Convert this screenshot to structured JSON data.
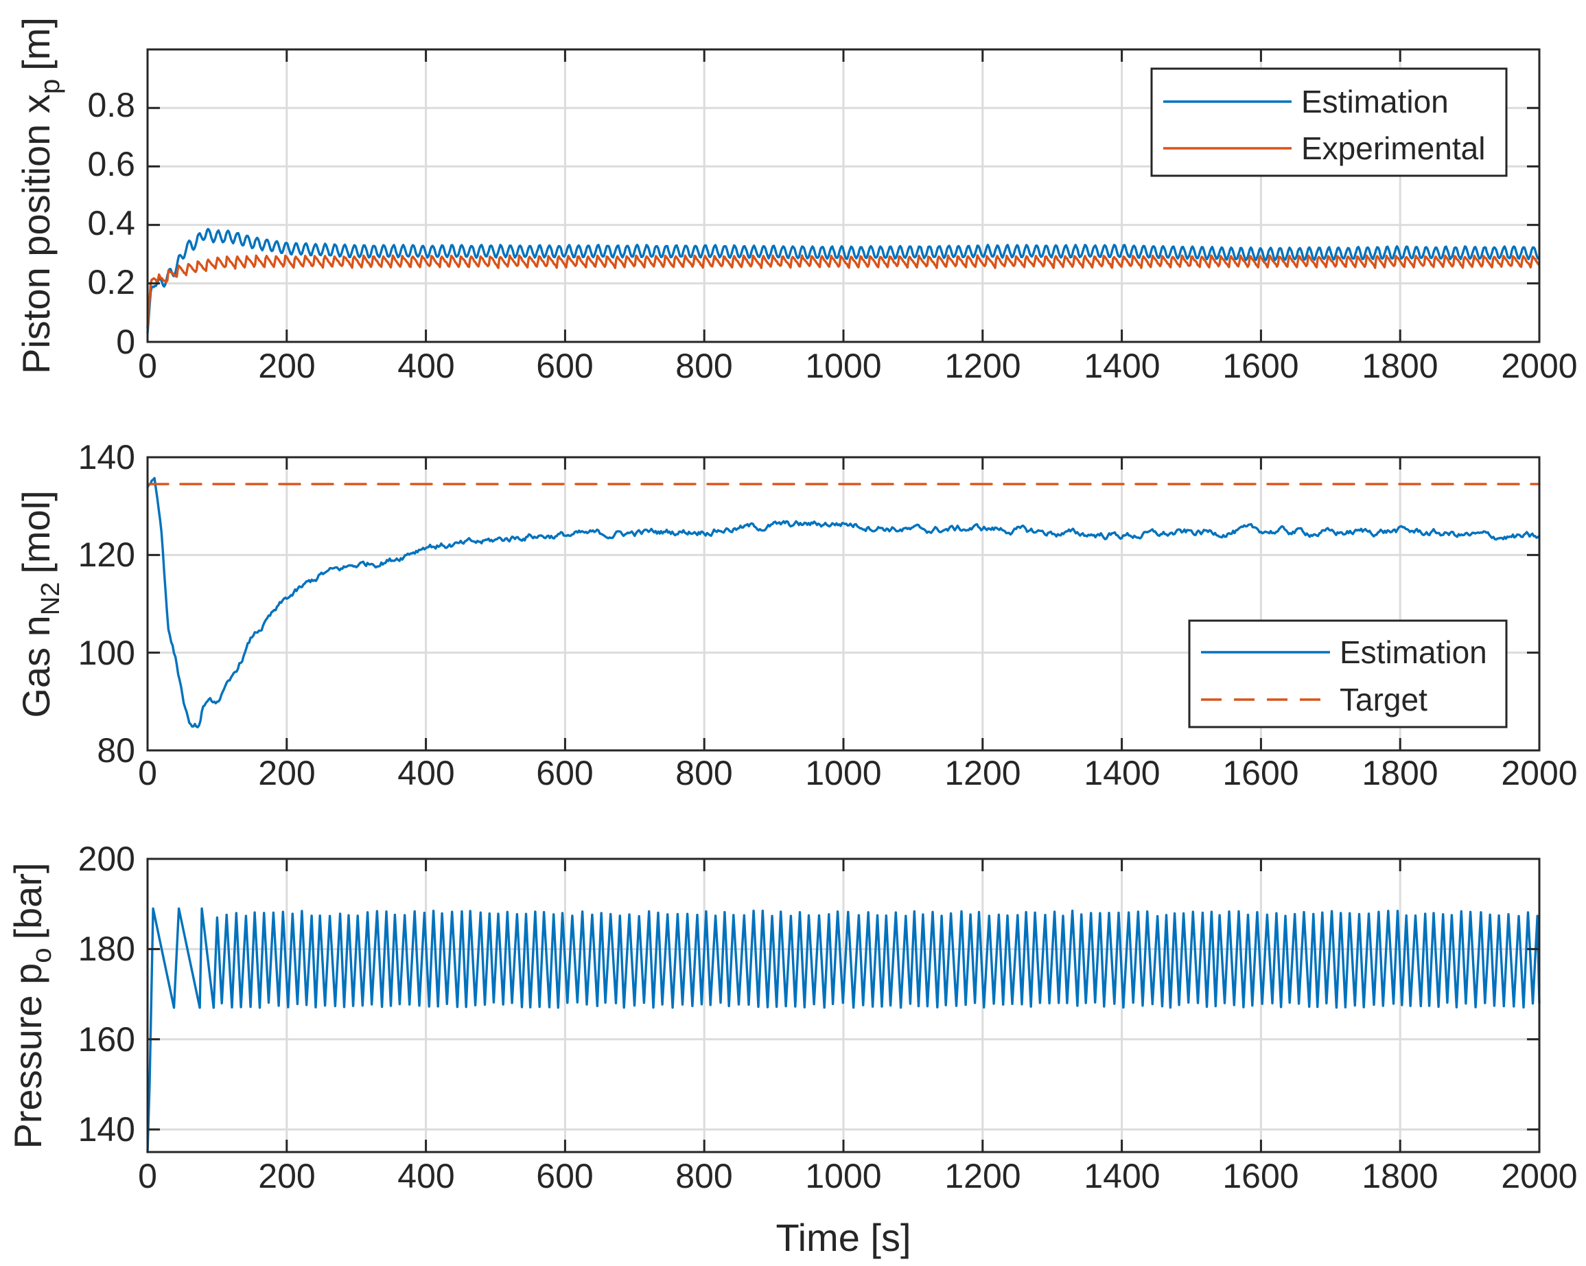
{
  "colors": {
    "blue": "#0072BD",
    "orange": "#D95319",
    "axis": "#262626",
    "grid": "#dcdcdc"
  },
  "chart_data": [
    {
      "type": "line",
      "xlabel": "Time [s]",
      "ylabel": "Piston position x_p [m]",
      "ylabel_parts": [
        "Piston position x",
        "p",
        "[m]"
      ],
      "xlim": [
        0,
        2000
      ],
      "ylim": [
        0,
        1
      ],
      "xticks": [
        0,
        200,
        400,
        600,
        800,
        1000,
        1200,
        1400,
        1600,
        1800,
        2000
      ],
      "yticks": [
        0,
        0.2,
        0.4,
        0.6,
        0.8
      ],
      "ytick_labels": [
        "0",
        "0.2",
        "0.4",
        "0.6",
        "0.8"
      ],
      "grid": true,
      "legend": "top-right",
      "series": [
        {
          "name": "Estimation",
          "color": "blue",
          "style": "solid",
          "x": [
            0,
            5,
            10,
            20,
            40,
            55,
            70,
            80,
            100,
            120,
            150,
            200,
            300,
            400,
            600,
            800,
            1000,
            1200,
            1400,
            1600,
            1800,
            2000
          ],
          "y": [
            0.03,
            0.18,
            0.2,
            0.2,
            0.25,
            0.32,
            0.34,
            0.37,
            0.36,
            0.36,
            0.34,
            0.32,
            0.31,
            0.31,
            0.31,
            0.31,
            0.305,
            0.31,
            0.31,
            0.3,
            0.305,
            0.305
          ],
          "oscillation_amplitude": 0.02,
          "oscillation_period_s": 14
        },
        {
          "name": "Experimental",
          "color": "orange",
          "style": "solid",
          "x": [
            0,
            5,
            10,
            20,
            40,
            80,
            100,
            150,
            200,
            300,
            400,
            600,
            800,
            1000,
            1200,
            1400,
            1600,
            1800,
            2000
          ],
          "y": [
            0.05,
            0.21,
            0.22,
            0.21,
            0.24,
            0.26,
            0.27,
            0.275,
            0.275,
            0.275,
            0.275,
            0.275,
            0.275,
            0.275,
            0.275,
            0.275,
            0.275,
            0.275,
            0.275
          ],
          "oscillation_amplitude": 0.02,
          "oscillation_period_s": 14
        }
      ]
    },
    {
      "type": "line",
      "xlabel": "Time [s]",
      "ylabel": "Gas n_N2 [mol]",
      "ylabel_parts": [
        "Gas n",
        "N2",
        "[mol]"
      ],
      "xlim": [
        0,
        2000
      ],
      "ylim": [
        80,
        140
      ],
      "xticks": [
        0,
        200,
        400,
        600,
        800,
        1000,
        1200,
        1400,
        1600,
        1800,
        2000
      ],
      "yticks": [
        80,
        100,
        120,
        140
      ],
      "ytick_labels": [
        "80",
        "100",
        "120",
        "140"
      ],
      "grid": true,
      "legend": "bottom-right",
      "series": [
        {
          "name": "Estimation",
          "color": "blue",
          "style": "solid",
          "x": [
            0,
            10,
            20,
            30,
            40,
            55,
            65,
            75,
            80,
            100,
            120,
            150,
            200,
            250,
            300,
            350,
            400,
            450,
            500,
            550,
            600,
            700,
            800,
            900,
            1000,
            1100,
            1200,
            1300,
            1400,
            1500,
            1600,
            1700,
            1800,
            1900,
            2000
          ],
          "y": [
            134,
            136,
            125,
            105,
            99,
            88,
            84,
            85,
            89,
            90,
            94,
            103,
            111,
            116,
            118,
            119,
            122,
            122,
            123,
            124,
            124,
            124.5,
            125,
            126,
            126.5,
            125,
            125.5,
            124.5,
            124,
            124.5,
            125,
            124.5,
            125,
            124,
            123.5
          ],
          "noise_amplitude": 1.0
        },
        {
          "name": "Target",
          "color": "orange",
          "style": "dashed",
          "x": [
            0,
            2000
          ],
          "y": [
            134.5,
            134.5
          ]
        }
      ]
    },
    {
      "type": "line",
      "xlabel": "Time [s]",
      "ylabel": "Pressure p_o [bar]",
      "ylabel_parts": [
        "Pressure p",
        "o",
        "[bar]"
      ],
      "xlim": [
        0,
        2000
      ],
      "ylim": [
        135,
        200
      ],
      "xticks": [
        0,
        200,
        400,
        600,
        800,
        1000,
        1200,
        1400,
        1600,
        1800,
        2000
      ],
      "yticks": [
        140,
        160,
        180,
        200
      ],
      "ytick_labels": [
        "140",
        "160",
        "180",
        "200"
      ],
      "grid": true,
      "legend": "none",
      "series": [
        {
          "name": "Estimation",
          "color": "blue",
          "style": "solid",
          "x": [
            0,
            3,
            8,
            38,
            45,
            75,
            78,
            95,
            100,
            2000
          ],
          "y": [
            135,
            150,
            189,
            167,
            189,
            167,
            189,
            167,
            187,
            187
          ],
          "oscillation_min": 167,
          "oscillation_max": 188.5,
          "oscillation_period_s": 13.5,
          "oscillation_start_s": 100
        }
      ]
    }
  ]
}
